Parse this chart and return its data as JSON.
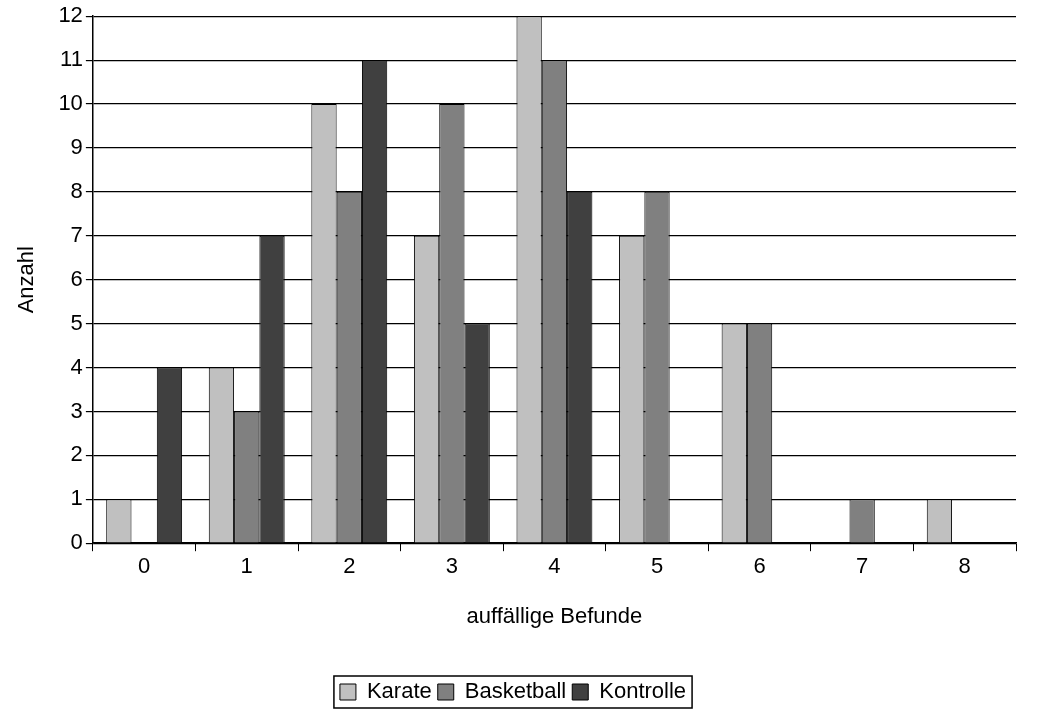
{
  "chart_data": {
    "type": "bar",
    "xlabel": "auffällige Befunde",
    "ylabel": "Anzahl",
    "categories": [
      "0",
      "1",
      "2",
      "3",
      "4",
      "5",
      "6",
      "7",
      "8"
    ],
    "series": [
      {
        "name": "Karate",
        "color": "#c0c0c0",
        "values": [
          1,
          4,
          10,
          7,
          12,
          7,
          5,
          0,
          1
        ]
      },
      {
        "name": "Basketball",
        "color": "#808080",
        "values": [
          0,
          3,
          8,
          10,
          11,
          8,
          5,
          1,
          0
        ]
      },
      {
        "name": "Kontrolle",
        "color": "#404040",
        "values": [
          4,
          7,
          11,
          5,
          8,
          0,
          0,
          0,
          0
        ]
      }
    ],
    "ylim": [
      0,
      12
    ],
    "yticks": [
      0,
      1,
      2,
      3,
      4,
      5,
      6,
      7,
      8,
      9,
      10,
      11,
      12
    ],
    "grid": "y",
    "legend": "bottom"
  }
}
